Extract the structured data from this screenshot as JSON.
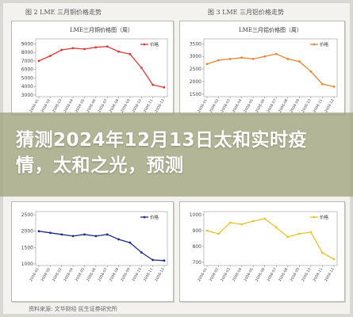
{
  "figures": [
    {
      "label": "图 2  LME 三月铜价格走势"
    },
    {
      "label": "图 3  LME 三月铝价格走势"
    }
  ],
  "headline": "猜测2024年12月13日太和实时疫情，太和之光，预测",
  "source": "资料来源: 文华财经 民生证券研究所",
  "colors": {
    "copper": "#d93a3a",
    "aluminum": "#e8862e",
    "nickel": "#1f2a8c",
    "zinc": "#e6c431"
  },
  "chart_data": [
    {
      "id": "copper",
      "type": "line",
      "title": "LME三月铜价格图（周）",
      "legend": [
        "价格"
      ],
      "yticks": [
        3000,
        4000,
        5000,
        6000,
        7000,
        8000,
        9000
      ],
      "ylim": [
        2800,
        9600
      ],
      "x": [
        "2008-01",
        "2008-02",
        "2008-03",
        "2008-04",
        "2008-05",
        "2008-06",
        "2008-07",
        "2008-08",
        "2008-09",
        "2008-10",
        "2008-11",
        "2008-12"
      ],
      "series": [
        {
          "name": "价格",
          "values": [
            7000,
            7600,
            8300,
            8500,
            8400,
            8600,
            8700,
            8100,
            7800,
            6200,
            4200,
            3900
          ]
        }
      ]
    },
    {
      "id": "aluminum",
      "type": "line",
      "title": "LME三月铝价格图（周）",
      "legend": [
        "价格"
      ],
      "yticks": [
        1500,
        2000,
        2500,
        3000,
        3500
      ],
      "ylim": [
        1400,
        3700
      ],
      "x": [
        "2008-01",
        "2008-02",
        "2008-03",
        "2008-04",
        "2008-05",
        "2008-06",
        "2008-07",
        "2008-08",
        "2008-09",
        "2008-10",
        "2008-11",
        "2008-12"
      ],
      "series": [
        {
          "name": "价格",
          "values": [
            2700,
            2850,
            2900,
            2950,
            2900,
            3000,
            3100,
            2900,
            2800,
            2400,
            1900,
            1800
          ]
        }
      ]
    },
    {
      "id": "nickel",
      "type": "line",
      "title": "",
      "legend": [
        "价格"
      ],
      "yticks": [
        1000,
        1500,
        2000,
        2500
      ],
      "ylim": [
        950,
        2600
      ],
      "x": [
        "2008-01",
        "2008-02",
        "2008-03",
        "2008-04",
        "2008-05",
        "2008-06",
        "2008-07",
        "2008-08",
        "2008-09",
        "2008-10",
        "2008-11",
        "2008-12"
      ],
      "series": [
        {
          "name": "价格",
          "values": [
            2000,
            1950,
            1900,
            1850,
            1900,
            1850,
            1900,
            1750,
            1650,
            1350,
            1120,
            1100
          ]
        }
      ]
    },
    {
      "id": "zinc",
      "type": "line",
      "title": "",
      "legend": [
        "价格"
      ],
      "yticks": [
        700,
        800,
        900,
        1000
      ],
      "ylim": [
        680,
        1020
      ],
      "x": [
        "2008-01",
        "2008-02",
        "2008-03",
        "2008-04",
        "2008-05",
        "2008-06",
        "2008-07",
        "2008-08",
        "2008-09",
        "2008-10",
        "2008-11",
        "2008-12"
      ],
      "series": [
        {
          "name": "价格",
          "values": [
            900,
            880,
            950,
            940,
            960,
            975,
            920,
            860,
            880,
            890,
            760,
            720
          ]
        }
      ]
    }
  ]
}
